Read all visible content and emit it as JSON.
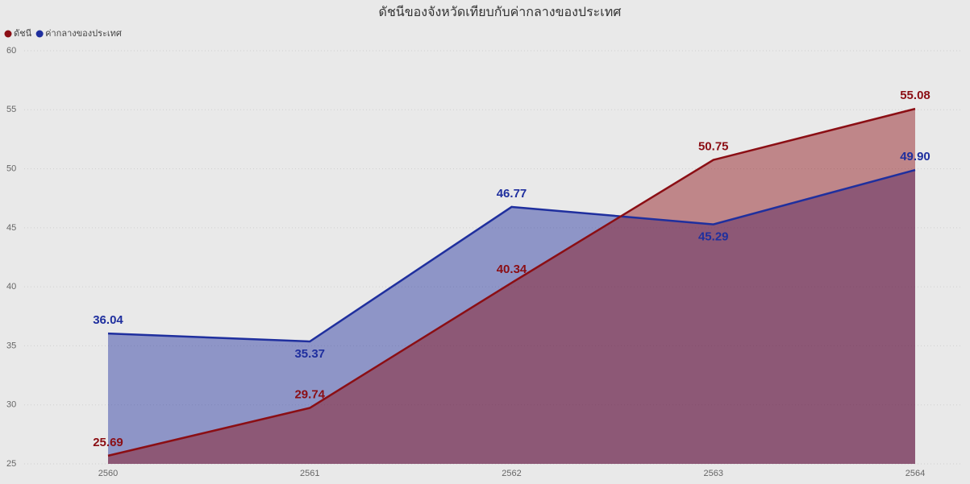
{
  "chart_data": {
    "type": "area",
    "title": "ดัชนีของจังหวัดเทียบกับค่ากลางของประเทศ",
    "categories": [
      "2560",
      "2561",
      "2562",
      "2563",
      "2564"
    ],
    "series": [
      {
        "name": "ดัชนี",
        "color": "#8b0e14",
        "values": [
          25.69,
          29.74,
          40.34,
          50.75,
          55.08
        ]
      },
      {
        "name": "ค่ากลางของประเทศ",
        "color": "#1f2f9e",
        "values": [
          36.04,
          35.37,
          46.77,
          45.29,
          49.9
        ],
        "value_labels": [
          "36.04",
          "35.37",
          "46.77",
          "45.29",
          "49.90"
        ]
      }
    ],
    "ylim": [
      25,
      60
    ],
    "yticks": [
      25,
      30,
      35,
      40,
      45,
      50,
      55,
      60
    ],
    "grid": true,
    "legend": "top-left"
  }
}
